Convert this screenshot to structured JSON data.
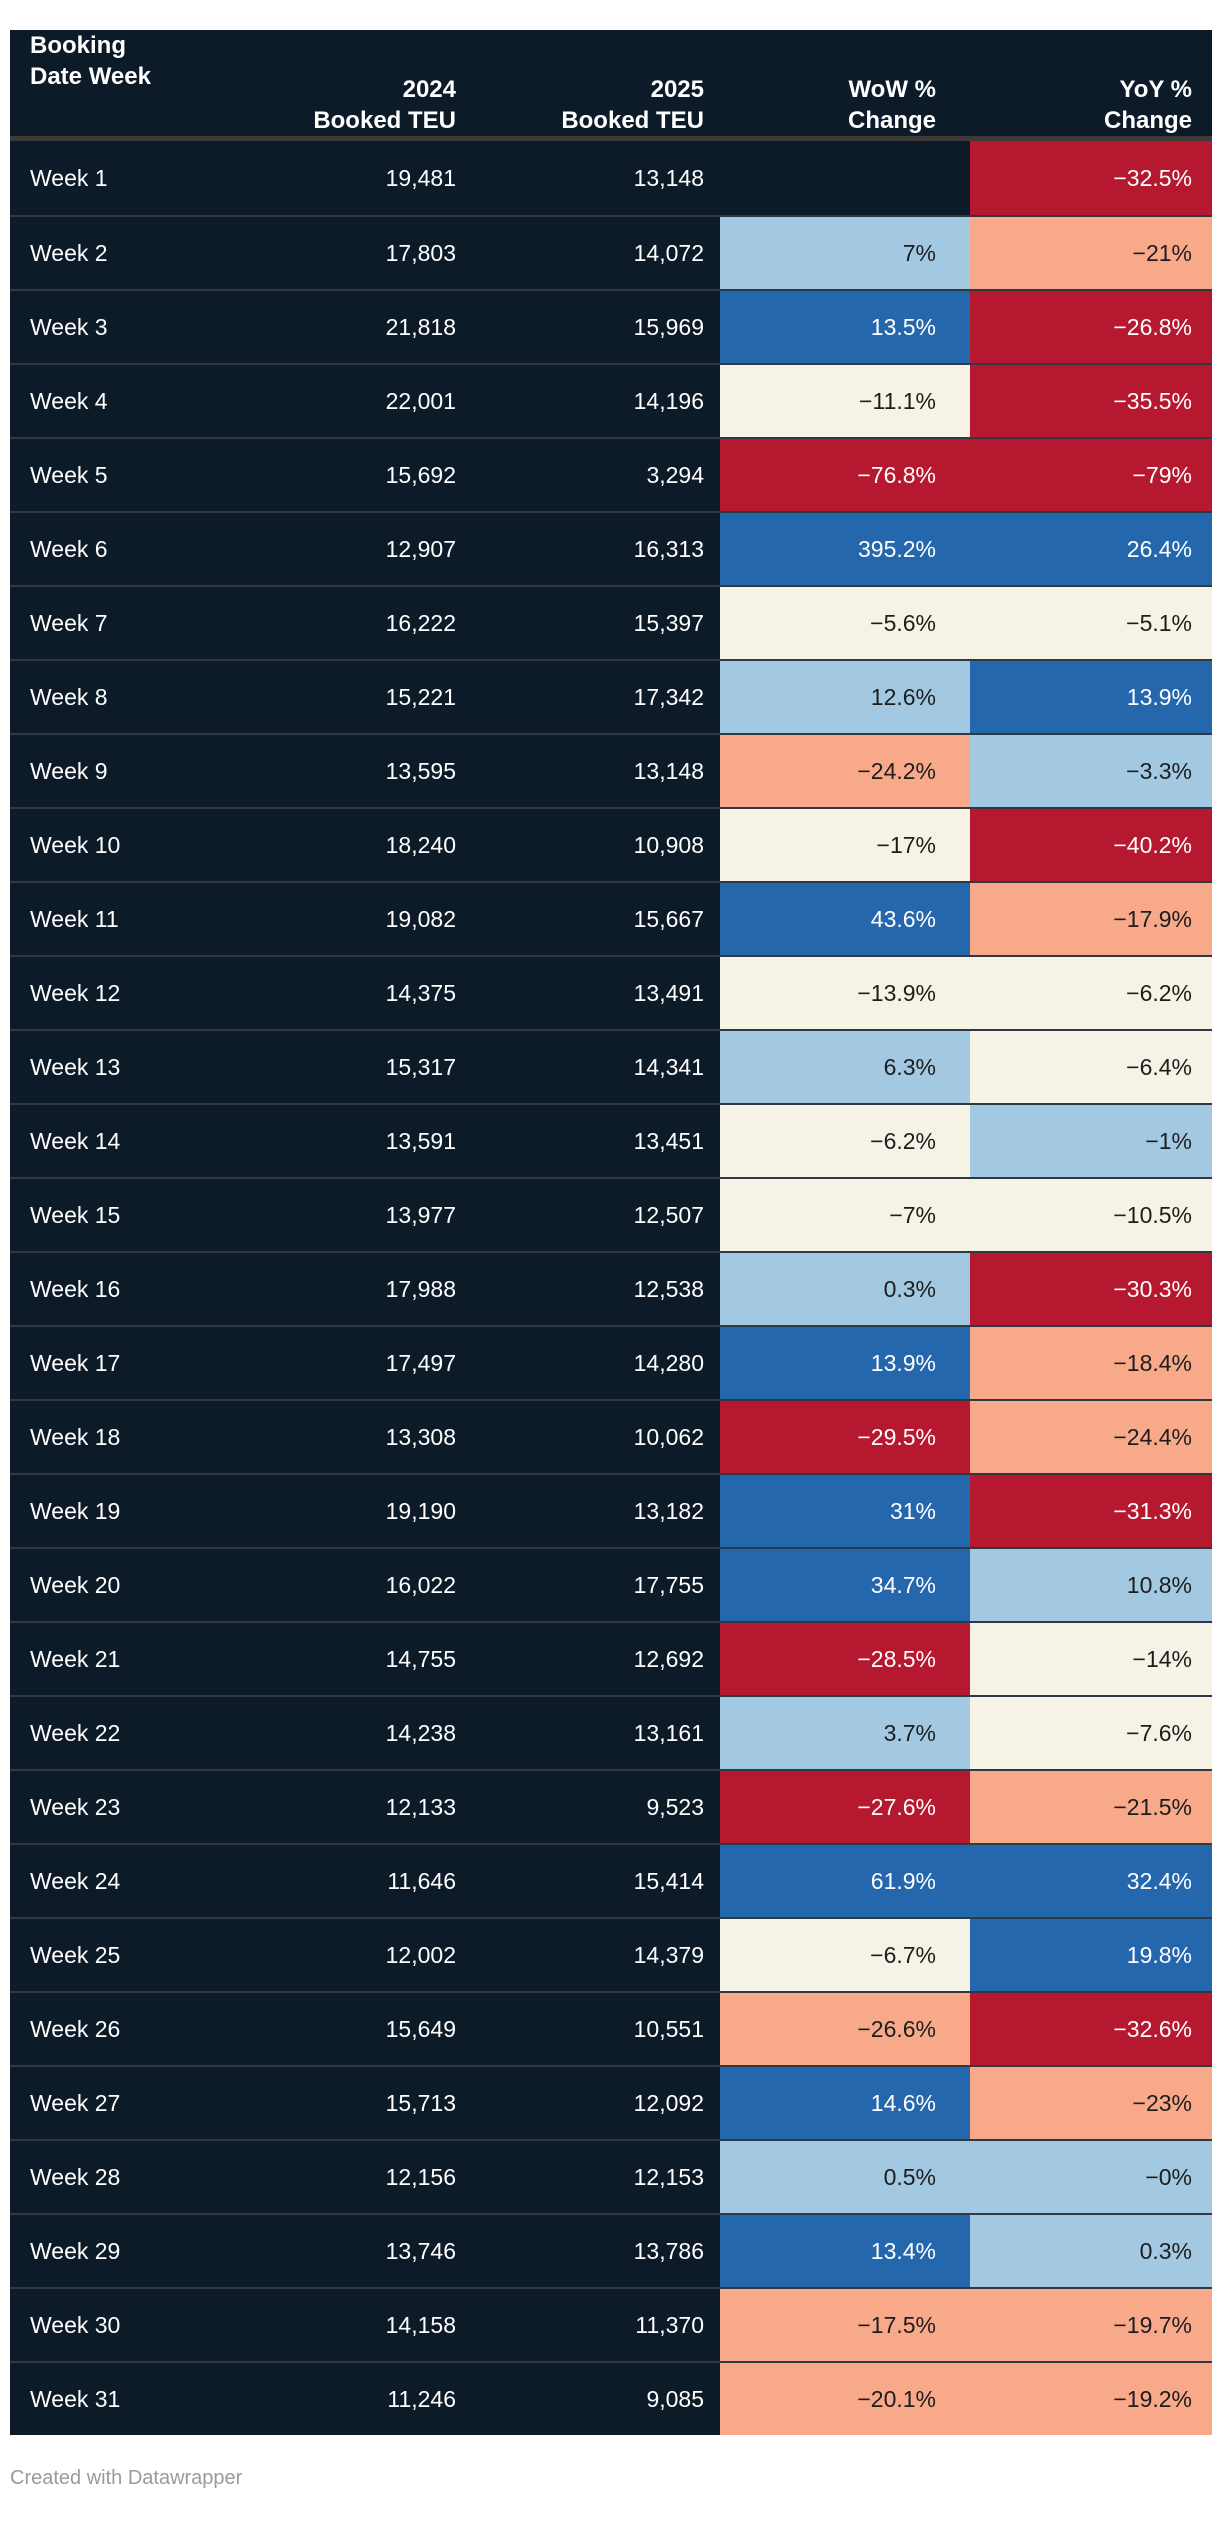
{
  "chart_data": {
    "type": "table",
    "title": "",
    "columns": [
      "Booking Date Week",
      "2024 Booked TEU",
      "2025 Booked TEU",
      "WoW % Change",
      "YoY % Change"
    ],
    "header_lines": [
      [
        "Booking",
        "Date Week"
      ],
      [
        "2024",
        "Booked TEU"
      ],
      [
        "2025",
        "Booked TEU"
      ],
      [
        "WoW %",
        "Change"
      ],
      [
        "YoY %",
        "Change"
      ]
    ],
    "heat_legend": {
      "navy": "#0d1b29",
      "red": "#b5182f",
      "salmon": "#f7a98a",
      "cream": "#f6f2e5",
      "lightblue": "#a3c9e2",
      "blue": "#2467ad"
    },
    "rows": [
      {
        "week": "Week 1",
        "booked_2024": "19,481",
        "booked_2025": "13,148",
        "wow": "",
        "wow_bin": "navy",
        "yoy": "−32.5%",
        "yoy_bin": "red"
      },
      {
        "week": "Week 2",
        "booked_2024": "17,803",
        "booked_2025": "14,072",
        "wow": "7%",
        "wow_bin": "lightblue",
        "yoy": "−21%",
        "yoy_bin": "salmon"
      },
      {
        "week": "Week 3",
        "booked_2024": "21,818",
        "booked_2025": "15,969",
        "wow": "13.5%",
        "wow_bin": "blue",
        "yoy": "−26.8%",
        "yoy_bin": "red"
      },
      {
        "week": "Week 4",
        "booked_2024": "22,001",
        "booked_2025": "14,196",
        "wow": "−11.1%",
        "wow_bin": "cream",
        "yoy": "−35.5%",
        "yoy_bin": "red"
      },
      {
        "week": "Week 5",
        "booked_2024": "15,692",
        "booked_2025": "3,294",
        "wow": "−76.8%",
        "wow_bin": "red",
        "yoy": "−79%",
        "yoy_bin": "red"
      },
      {
        "week": "Week 6",
        "booked_2024": "12,907",
        "booked_2025": "16,313",
        "wow": "395.2%",
        "wow_bin": "blue",
        "yoy": "26.4%",
        "yoy_bin": "blue"
      },
      {
        "week": "Week 7",
        "booked_2024": "16,222",
        "booked_2025": "15,397",
        "wow": "−5.6%",
        "wow_bin": "cream",
        "yoy": "−5.1%",
        "yoy_bin": "cream"
      },
      {
        "week": "Week 8",
        "booked_2024": "15,221",
        "booked_2025": "17,342",
        "wow": "12.6%",
        "wow_bin": "lightblue",
        "yoy": "13.9%",
        "yoy_bin": "blue"
      },
      {
        "week": "Week 9",
        "booked_2024": "13,595",
        "booked_2025": "13,148",
        "wow": "−24.2%",
        "wow_bin": "salmon",
        "yoy": "−3.3%",
        "yoy_bin": "lightblue"
      },
      {
        "week": "Week 10",
        "booked_2024": "18,240",
        "booked_2025": "10,908",
        "wow": "−17%",
        "wow_bin": "cream",
        "yoy": "−40.2%",
        "yoy_bin": "red"
      },
      {
        "week": "Week 11",
        "booked_2024": "19,082",
        "booked_2025": "15,667",
        "wow": "43.6%",
        "wow_bin": "blue",
        "yoy": "−17.9%",
        "yoy_bin": "salmon"
      },
      {
        "week": "Week 12",
        "booked_2024": "14,375",
        "booked_2025": "13,491",
        "wow": "−13.9%",
        "wow_bin": "cream",
        "yoy": "−6.2%",
        "yoy_bin": "cream"
      },
      {
        "week": "Week 13",
        "booked_2024": "15,317",
        "booked_2025": "14,341",
        "wow": "6.3%",
        "wow_bin": "lightblue",
        "yoy": "−6.4%",
        "yoy_bin": "cream"
      },
      {
        "week": "Week 14",
        "booked_2024": "13,591",
        "booked_2025": "13,451",
        "wow": "−6.2%",
        "wow_bin": "cream",
        "yoy": "−1%",
        "yoy_bin": "lightblue"
      },
      {
        "week": "Week 15",
        "booked_2024": "13,977",
        "booked_2025": "12,507",
        "wow": "−7%",
        "wow_bin": "cream",
        "yoy": "−10.5%",
        "yoy_bin": "cream"
      },
      {
        "week": "Week 16",
        "booked_2024": "17,988",
        "booked_2025": "12,538",
        "wow": "0.3%",
        "wow_bin": "lightblue",
        "yoy": "−30.3%",
        "yoy_bin": "red"
      },
      {
        "week": "Week 17",
        "booked_2024": "17,497",
        "booked_2025": "14,280",
        "wow": "13.9%",
        "wow_bin": "blue",
        "yoy": "−18.4%",
        "yoy_bin": "salmon"
      },
      {
        "week": "Week 18",
        "booked_2024": "13,308",
        "booked_2025": "10,062",
        "wow": "−29.5%",
        "wow_bin": "red",
        "yoy": "−24.4%",
        "yoy_bin": "salmon"
      },
      {
        "week": "Week 19",
        "booked_2024": "19,190",
        "booked_2025": "13,182",
        "wow": "31%",
        "wow_bin": "blue",
        "yoy": "−31.3%",
        "yoy_bin": "red"
      },
      {
        "week": "Week 20",
        "booked_2024": "16,022",
        "booked_2025": "17,755",
        "wow": "34.7%",
        "wow_bin": "blue",
        "yoy": "10.8%",
        "yoy_bin": "lightblue"
      },
      {
        "week": "Week 21",
        "booked_2024": "14,755",
        "booked_2025": "12,692",
        "wow": "−28.5%",
        "wow_bin": "red",
        "yoy": "−14%",
        "yoy_bin": "cream"
      },
      {
        "week": "Week 22",
        "booked_2024": "14,238",
        "booked_2025": "13,161",
        "wow": "3.7%",
        "wow_bin": "lightblue",
        "yoy": "−7.6%",
        "yoy_bin": "cream"
      },
      {
        "week": "Week 23",
        "booked_2024": "12,133",
        "booked_2025": "9,523",
        "wow": "−27.6%",
        "wow_bin": "red",
        "yoy": "−21.5%",
        "yoy_bin": "salmon"
      },
      {
        "week": "Week 24",
        "booked_2024": "11,646",
        "booked_2025": "15,414",
        "wow": "61.9%",
        "wow_bin": "blue",
        "yoy": "32.4%",
        "yoy_bin": "blue"
      },
      {
        "week": "Week 25",
        "booked_2024": "12,002",
        "booked_2025": "14,379",
        "wow": "−6.7%",
        "wow_bin": "cream",
        "yoy": "19.8%",
        "yoy_bin": "blue"
      },
      {
        "week": "Week 26",
        "booked_2024": "15,649",
        "booked_2025": "10,551",
        "wow": "−26.6%",
        "wow_bin": "salmon",
        "yoy": "−32.6%",
        "yoy_bin": "red"
      },
      {
        "week": "Week 27",
        "booked_2024": "15,713",
        "booked_2025": "12,092",
        "wow": "14.6%",
        "wow_bin": "blue",
        "yoy": "−23%",
        "yoy_bin": "salmon"
      },
      {
        "week": "Week 28",
        "booked_2024": "12,156",
        "booked_2025": "12,153",
        "wow": "0.5%",
        "wow_bin": "lightblue",
        "yoy": "−0%",
        "yoy_bin": "lightblue"
      },
      {
        "week": "Week 29",
        "booked_2024": "13,746",
        "booked_2025": "13,786",
        "wow": "13.4%",
        "wow_bin": "blue",
        "yoy": "0.3%",
        "yoy_bin": "lightblue"
      },
      {
        "week": "Week 30",
        "booked_2024": "14,158",
        "booked_2025": "11,370",
        "wow": "−17.5%",
        "wow_bin": "salmon",
        "yoy": "−19.7%",
        "yoy_bin": "salmon"
      },
      {
        "week": "Week 31",
        "booked_2024": "11,246",
        "booked_2025": "9,085",
        "wow": "−20.1%",
        "wow_bin": "salmon",
        "yoy": "−19.2%",
        "yoy_bin": "salmon"
      }
    ]
  },
  "footer": {
    "credit": "Created with Datawrapper"
  }
}
